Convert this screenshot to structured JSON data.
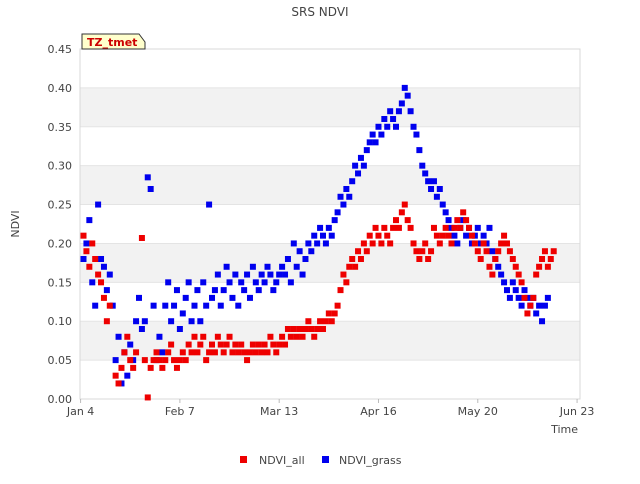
{
  "chart_data": {
    "type": "scatter",
    "title": "SRS NDVI",
    "xlabel": "Time",
    "ylabel": "NDVI",
    "badge": "TZ_tmet",
    "x_axis": {
      "min_day": 0,
      "max_day": 171,
      "ticks": [
        {
          "label": "Jan 4",
          "day": 0
        },
        {
          "label": "Feb 7",
          "day": 34
        },
        {
          "label": "Mar 13",
          "day": 68
        },
        {
          "label": "Apr 16",
          "day": 102
        },
        {
          "label": "May 20",
          "day": 136
        },
        {
          "label": "Jun 23",
          "day": 170
        }
      ]
    },
    "y_axis": {
      "min": 0.0,
      "max": 0.45,
      "ticks": [
        "0.00",
        "0.05",
        "0.10",
        "0.15",
        "0.20",
        "0.25",
        "0.30",
        "0.35",
        "0.40",
        "0.45"
      ]
    },
    "grid": true,
    "legend_position": "bottom",
    "series": [
      {
        "name": "NDVI_all",
        "color": "#ee0000",
        "points": [
          [
            1,
            0.21
          ],
          [
            2,
            0.19
          ],
          [
            3,
            0.17
          ],
          [
            4,
            0.2
          ],
          [
            5,
            0.18
          ],
          [
            6,
            0.16
          ],
          [
            7,
            0.15
          ],
          [
            8,
            0.13
          ],
          [
            9,
            0.1
          ],
          [
            10,
            0.12
          ],
          [
            12,
            0.03
          ],
          [
            13,
            0.02
          ],
          [
            14,
            0.04
          ],
          [
            15,
            0.06
          ],
          [
            16,
            0.08
          ],
          [
            17,
            0.05
          ],
          [
            18,
            0.04
          ],
          [
            19,
            0.06
          ],
          [
            21,
            0.207
          ],
          [
            22,
            0.05
          ],
          [
            23,
            0.002
          ],
          [
            24,
            0.04
          ],
          [
            25,
            0.05
          ],
          [
            26,
            0.06
          ],
          [
            27,
            0.05
          ],
          [
            28,
            0.04
          ],
          [
            29,
            0.05
          ],
          [
            30,
            0.06
          ],
          [
            31,
            0.07
          ],
          [
            32,
            0.05
          ],
          [
            33,
            0.04
          ],
          [
            34,
            0.05
          ],
          [
            35,
            0.06
          ],
          [
            36,
            0.05
          ],
          [
            37,
            0.07
          ],
          [
            38,
            0.06
          ],
          [
            39,
            0.08
          ],
          [
            40,
            0.06
          ],
          [
            41,
            0.07
          ],
          [
            42,
            0.08
          ],
          [
            43,
            0.05
          ],
          [
            44,
            0.06
          ],
          [
            45,
            0.07
          ],
          [
            46,
            0.06
          ],
          [
            47,
            0.08
          ],
          [
            48,
            0.07
          ],
          [
            49,
            0.06
          ],
          [
            50,
            0.07
          ],
          [
            51,
            0.08
          ],
          [
            52,
            0.06
          ],
          [
            53,
            0.07
          ],
          [
            54,
            0.06
          ],
          [
            55,
            0.07
          ],
          [
            56,
            0.06
          ],
          [
            57,
            0.05
          ],
          [
            58,
            0.06
          ],
          [
            59,
            0.07
          ],
          [
            60,
            0.06
          ],
          [
            61,
            0.07
          ],
          [
            62,
            0.06
          ],
          [
            63,
            0.07
          ],
          [
            64,
            0.06
          ],
          [
            65,
            0.08
          ],
          [
            66,
            0.07
          ],
          [
            67,
            0.06
          ],
          [
            68,
            0.07
          ],
          [
            69,
            0.08
          ],
          [
            70,
            0.07
          ],
          [
            71,
            0.09
          ],
          [
            72,
            0.08
          ],
          [
            73,
            0.09
          ],
          [
            74,
            0.08
          ],
          [
            75,
            0.09
          ],
          [
            76,
            0.08
          ],
          [
            77,
            0.09
          ],
          [
            78,
            0.1
          ],
          [
            79,
            0.09
          ],
          [
            80,
            0.08
          ],
          [
            81,
            0.09
          ],
          [
            82,
            0.1
          ],
          [
            83,
            0.09
          ],
          [
            84,
            0.1
          ],
          [
            85,
            0.11
          ],
          [
            86,
            0.1
          ],
          [
            87,
            0.11
          ],
          [
            88,
            0.12
          ],
          [
            89,
            0.14
          ],
          [
            90,
            0.16
          ],
          [
            91,
            0.15
          ],
          [
            92,
            0.17
          ],
          [
            93,
            0.18
          ],
          [
            94,
            0.17
          ],
          [
            95,
            0.19
          ],
          [
            96,
            0.18
          ],
          [
            97,
            0.2
          ],
          [
            98,
            0.19
          ],
          [
            99,
            0.21
          ],
          [
            100,
            0.2
          ],
          [
            101,
            0.22
          ],
          [
            102,
            0.21
          ],
          [
            103,
            0.2
          ],
          [
            104,
            0.22
          ],
          [
            105,
            0.21
          ],
          [
            106,
            0.2
          ],
          [
            107,
            0.22
          ],
          [
            108,
            0.23
          ],
          [
            109,
            0.22
          ],
          [
            110,
            0.24
          ],
          [
            111,
            0.25
          ],
          [
            112,
            0.23
          ],
          [
            113,
            0.22
          ],
          [
            114,
            0.2
          ],
          [
            115,
            0.19
          ],
          [
            116,
            0.18
          ],
          [
            117,
            0.19
          ],
          [
            118,
            0.2
          ],
          [
            119,
            0.18
          ],
          [
            120,
            0.19
          ],
          [
            121,
            0.22
          ],
          [
            122,
            0.21
          ],
          [
            123,
            0.2
          ],
          [
            124,
            0.21
          ],
          [
            125,
            0.22
          ],
          [
            126,
            0.21
          ],
          [
            127,
            0.2
          ],
          [
            128,
            0.22
          ],
          [
            129,
            0.23
          ],
          [
            130,
            0.22
          ],
          [
            131,
            0.24
          ],
          [
            132,
            0.23
          ],
          [
            133,
            0.22
          ],
          [
            134,
            0.21
          ],
          [
            135,
            0.2
          ],
          [
            136,
            0.19
          ],
          [
            137,
            0.18
          ],
          [
            138,
            0.2
          ],
          [
            139,
            0.19
          ],
          [
            140,
            0.17
          ],
          [
            141,
            0.16
          ],
          [
            142,
            0.18
          ],
          [
            143,
            0.19
          ],
          [
            144,
            0.2
          ],
          [
            145,
            0.21
          ],
          [
            146,
            0.2
          ],
          [
            147,
            0.19
          ],
          [
            148,
            0.18
          ],
          [
            149,
            0.17
          ],
          [
            150,
            0.16
          ],
          [
            151,
            0.15
          ],
          [
            152,
            0.13
          ],
          [
            153,
            0.11
          ],
          [
            154,
            0.12
          ],
          [
            155,
            0.13
          ],
          [
            156,
            0.16
          ],
          [
            157,
            0.17
          ],
          [
            158,
            0.18
          ],
          [
            159,
            0.19
          ],
          [
            160,
            0.17
          ],
          [
            161,
            0.18
          ],
          [
            162,
            0.19
          ]
        ]
      },
      {
        "name": "NDVI_grass",
        "color": "#0000ee",
        "points": [
          [
            1,
            0.18
          ],
          [
            2,
            0.2
          ],
          [
            3,
            0.23
          ],
          [
            4,
            0.15
          ],
          [
            5,
            0.12
          ],
          [
            6,
            0.25
          ],
          [
            7,
            0.18
          ],
          [
            8,
            0.17
          ],
          [
            9,
            0.14
          ],
          [
            10,
            0.16
          ],
          [
            11,
            0.12
          ],
          [
            12,
            0.05
          ],
          [
            13,
            0.08
          ],
          [
            14,
            0.02
          ],
          [
            15,
            0.06
          ],
          [
            16,
            0.03
          ],
          [
            17,
            0.07
          ],
          [
            18,
            0.05
          ],
          [
            19,
            0.1
          ],
          [
            20,
            0.13
          ],
          [
            21,
            0.09
          ],
          [
            22,
            0.1
          ],
          [
            23,
            0.285
          ],
          [
            24,
            0.27
          ],
          [
            25,
            0.12
          ],
          [
            26,
            0.05
          ],
          [
            27,
            0.08
          ],
          [
            28,
            0.06
          ],
          [
            29,
            0.12
          ],
          [
            30,
            0.15
          ],
          [
            31,
            0.1
          ],
          [
            32,
            0.12
          ],
          [
            33,
            0.14
          ],
          [
            34,
            0.09
          ],
          [
            35,
            0.11
          ],
          [
            36,
            0.13
          ],
          [
            37,
            0.15
          ],
          [
            38,
            0.1
          ],
          [
            39,
            0.12
          ],
          [
            40,
            0.14
          ],
          [
            41,
            0.1
          ],
          [
            42,
            0.15
          ],
          [
            43,
            0.12
          ],
          [
            44,
            0.25
          ],
          [
            45,
            0.13
          ],
          [
            46,
            0.14
          ],
          [
            47,
            0.16
          ],
          [
            48,
            0.12
          ],
          [
            49,
            0.14
          ],
          [
            50,
            0.17
          ],
          [
            51,
            0.15
          ],
          [
            52,
            0.13
          ],
          [
            53,
            0.16
          ],
          [
            54,
            0.12
          ],
          [
            55,
            0.15
          ],
          [
            56,
            0.14
          ],
          [
            57,
            0.16
          ],
          [
            58,
            0.13
          ],
          [
            59,
            0.17
          ],
          [
            60,
            0.15
          ],
          [
            61,
            0.14
          ],
          [
            62,
            0.16
          ],
          [
            63,
            0.15
          ],
          [
            64,
            0.17
          ],
          [
            65,
            0.16
          ],
          [
            66,
            0.14
          ],
          [
            67,
            0.15
          ],
          [
            68,
            0.16
          ],
          [
            69,
            0.17
          ],
          [
            70,
            0.16
          ],
          [
            71,
            0.18
          ],
          [
            72,
            0.15
          ],
          [
            73,
            0.2
          ],
          [
            74,
            0.17
          ],
          [
            75,
            0.19
          ],
          [
            76,
            0.16
          ],
          [
            77,
            0.18
          ],
          [
            78,
            0.2
          ],
          [
            79,
            0.19
          ],
          [
            80,
            0.21
          ],
          [
            81,
            0.2
          ],
          [
            82,
            0.22
          ],
          [
            83,
            0.21
          ],
          [
            84,
            0.2
          ],
          [
            85,
            0.22
          ],
          [
            86,
            0.21
          ],
          [
            87,
            0.23
          ],
          [
            88,
            0.24
          ],
          [
            89,
            0.26
          ],
          [
            90,
            0.25
          ],
          [
            91,
            0.27
          ],
          [
            92,
            0.26
          ],
          [
            93,
            0.28
          ],
          [
            94,
            0.3
          ],
          [
            95,
            0.29
          ],
          [
            96,
            0.31
          ],
          [
            97,
            0.3
          ],
          [
            98,
            0.32
          ],
          [
            99,
            0.33
          ],
          [
            100,
            0.34
          ],
          [
            101,
            0.33
          ],
          [
            102,
            0.35
          ],
          [
            103,
            0.34
          ],
          [
            104,
            0.36
          ],
          [
            105,
            0.35
          ],
          [
            106,
            0.37
          ],
          [
            107,
            0.36
          ],
          [
            108,
            0.35
          ],
          [
            109,
            0.37
          ],
          [
            110,
            0.38
          ],
          [
            111,
            0.4
          ],
          [
            112,
            0.39
          ],
          [
            113,
            0.37
          ],
          [
            114,
            0.35
          ],
          [
            115,
            0.34
          ],
          [
            116,
            0.32
          ],
          [
            117,
            0.3
          ],
          [
            118,
            0.29
          ],
          [
            119,
            0.28
          ],
          [
            120,
            0.27
          ],
          [
            121,
            0.28
          ],
          [
            122,
            0.26
          ],
          [
            123,
            0.27
          ],
          [
            124,
            0.25
          ],
          [
            125,
            0.24
          ],
          [
            126,
            0.23
          ],
          [
            127,
            0.22
          ],
          [
            128,
            0.21
          ],
          [
            129,
            0.2
          ],
          [
            130,
            0.22
          ],
          [
            131,
            0.23
          ],
          [
            132,
            0.21
          ],
          [
            133,
            0.22
          ],
          [
            134,
            0.2
          ],
          [
            135,
            0.21
          ],
          [
            136,
            0.22
          ],
          [
            137,
            0.2
          ],
          [
            138,
            0.21
          ],
          [
            139,
            0.2
          ],
          [
            140,
            0.22
          ],
          [
            141,
            0.19
          ],
          [
            142,
            0.18
          ],
          [
            143,
            0.17
          ],
          [
            144,
            0.16
          ],
          [
            145,
            0.15
          ],
          [
            146,
            0.14
          ],
          [
            147,
            0.13
          ],
          [
            148,
            0.15
          ],
          [
            149,
            0.14
          ],
          [
            150,
            0.13
          ],
          [
            151,
            0.12
          ],
          [
            152,
            0.14
          ],
          [
            153,
            0.13
          ],
          [
            154,
            0.12
          ],
          [
            155,
            0.13
          ],
          [
            156,
            0.11
          ],
          [
            157,
            0.12
          ],
          [
            158,
            0.1
          ],
          [
            159,
            0.12
          ],
          [
            160,
            0.13
          ]
        ]
      }
    ]
  }
}
